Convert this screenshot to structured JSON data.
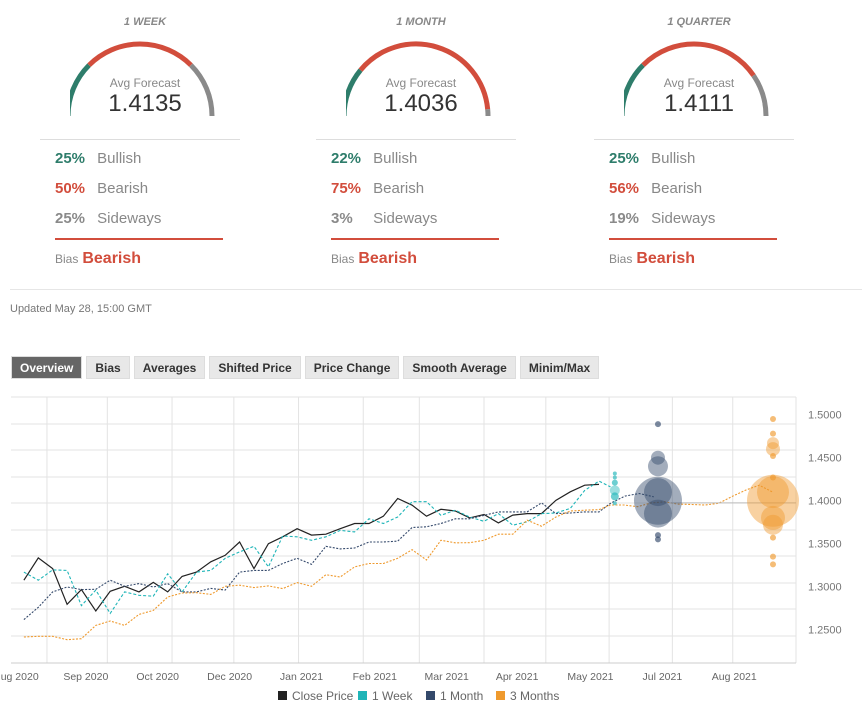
{
  "colors": {
    "bullish": "#2e7d6b",
    "bearish": "#d24d3c",
    "sideways": "#8a8a8a",
    "close": "#222",
    "week": "#1fb5b8",
    "month": "#34496b",
    "quarter": "#ef9a2e"
  },
  "cards": [
    {
      "title": "1 WEEK",
      "avg_label": "Avg Forecast",
      "avg": "1.4135",
      "bullish": "25%",
      "bearish": "50%",
      "sideways": "25%",
      "bull_label": "Bullish",
      "bear_label": "Bearish",
      "side_label": "Sideways",
      "bias_label": "Bias",
      "bias": "Bearish",
      "pct": [
        25,
        50,
        25
      ]
    },
    {
      "title": "1 MONTH",
      "avg_label": "Avg Forecast",
      "avg": "1.4036",
      "bullish": "22%",
      "bearish": "75%",
      "sideways": "3%",
      "bull_label": "Bullish",
      "bear_label": "Bearish",
      "side_label": "Sideways",
      "bias_label": "Bias",
      "bias": "Bearish",
      "pct": [
        22,
        75,
        3
      ]
    },
    {
      "title": "1 QUARTER",
      "avg_label": "Avg Forecast",
      "avg": "1.4111",
      "bullish": "25%",
      "bearish": "56%",
      "sideways": "19%",
      "bull_label": "Bullish",
      "bear_label": "Bearish",
      "side_label": "Sideways",
      "bias_label": "Bias",
      "bias": "Bearish",
      "pct": [
        25,
        56,
        19
      ]
    }
  ],
  "updated": "Updated May 28, 15:00 GMT",
  "tabs": [
    "Overview",
    "Bias",
    "Averages",
    "Shifted Price",
    "Price Change",
    "Smooth Average",
    "Minim/Max"
  ],
  "chart_data": {
    "type": "line",
    "x_unit": "weeks",
    "xlim": [
      -0.9,
      53.7
    ],
    "ylim": [
      1.2,
      1.52
    ],
    "y_ticks": [
      "1.5000",
      "1.4500",
      "1.4000",
      "1.3500",
      "1.3000",
      "1.2500"
    ],
    "y_tick_values": [
      1.5,
      1.45,
      1.4,
      1.35,
      1.3,
      1.25
    ],
    "x_ticks": [
      {
        "label": "ug 2020",
        "x": 0.4
      },
      {
        "label": "Sep 2020",
        "x": 5.0
      },
      {
        "label": "Oct 2020",
        "x": 10.0
      },
      {
        "label": "Dec 2020",
        "x": 15.0
      },
      {
        "label": "Jan 2021",
        "x": 20.0
      },
      {
        "label": "Feb 2021",
        "x": 25.1
      },
      {
        "label": "Mar 2021",
        "x": 30.1
      },
      {
        "label": "Apr 2021",
        "x": 35.0
      },
      {
        "label": "May 2021",
        "x": 40.1
      },
      {
        "label": "Jul 2021",
        "x": 45.1
      },
      {
        "label": "Aug 2021",
        "x": 50.1
      }
    ],
    "legend": [
      "Close Price",
      "1 Week",
      "1 Month",
      "3 Months"
    ],
    "legend_position": "bottom",
    "series": [
      {
        "name": "Close Price",
        "style": "solid",
        "values": [
          1.3075,
          1.3335,
          1.321,
          1.2795,
          1.2966,
          1.2717,
          1.2946,
          1.3005,
          1.294,
          1.305,
          1.294,
          1.312,
          1.317,
          1.329,
          1.3365,
          1.352,
          1.321,
          1.35,
          1.358,
          1.3675,
          1.36,
          1.361,
          1.3675,
          1.3735,
          1.3735,
          1.382,
          1.4025,
          1.3948,
          1.382,
          1.39,
          1.388,
          1.38,
          1.384,
          1.3742,
          1.3832,
          1.385,
          1.385,
          1.4005,
          1.4103,
          1.418,
          1.419
        ]
      },
      {
        "name": "1 Week",
        "style": "dashed",
        "values": [
          1.317,
          1.3075,
          1.3195,
          1.319,
          1.278,
          1.296,
          1.269,
          1.294,
          1.29,
          1.289,
          1.315,
          1.294,
          1.317,
          1.319,
          1.333,
          1.3405,
          1.347,
          1.323,
          1.359,
          1.358,
          1.354,
          1.358,
          1.3655,
          1.3637,
          1.379,
          1.3735,
          1.381,
          1.3988,
          1.3988,
          1.383,
          1.389,
          1.381,
          1.376,
          1.385,
          1.3715,
          1.3755,
          1.385,
          1.3857,
          1.391,
          1.412,
          1.4228,
          1.416
        ]
      },
      {
        "name": "1 Month",
        "style": "dotted",
        "values": [
          1.2617,
          1.276,
          1.294,
          1.2997,
          1.2966,
          1.297,
          1.3075,
          1.3005,
          1.3036,
          1.2997,
          1.3036,
          1.294,
          1.294,
          1.298,
          1.296,
          1.317,
          1.319,
          1.319,
          1.327,
          1.333,
          1.326,
          1.347,
          1.344,
          1.345,
          1.352,
          1.352,
          1.353,
          1.3688,
          1.3696,
          1.3735,
          1.379,
          1.379,
          1.383,
          1.387,
          1.387,
          1.387,
          1.3975,
          1.385,
          1.3857,
          1.387,
          1.387,
          1.397,
          1.4053,
          1.4084,
          1.4045
        ]
      },
      {
        "name": "3 Months",
        "style": "dotted",
        "values": [
          1.2415,
          1.2423,
          1.2423,
          1.2384,
          1.2395,
          1.255,
          1.2601,
          1.255,
          1.2678,
          1.2725,
          1.288,
          1.2927,
          1.293,
          1.291,
          1.3005,
          1.3017,
          1.299,
          1.3009,
          1.2978,
          1.3048,
          1.3005,
          1.314,
          1.3113,
          1.323,
          1.327,
          1.327,
          1.333,
          1.343,
          1.331,
          1.354,
          1.351,
          1.3512,
          1.354,
          1.361,
          1.361,
          1.3773,
          1.3703,
          1.381,
          1.388,
          1.389,
          1.3897,
          1.395,
          1.395,
          1.393,
          1.3975,
          1.3987,
          1.396,
          1.3956,
          1.395,
          1.397,
          1.405,
          1.4123,
          1.418,
          1.41
        ]
      }
    ],
    "forecasts": [
      {
        "name": "1 Week",
        "x": 41.1,
        "points": [
          {
            "y": 1.4317,
            "size": 2
          },
          {
            "y": 1.427,
            "size": 2
          },
          {
            "y": 1.421,
            "size": 3
          },
          {
            "y": 1.412,
            "size": 5
          },
          {
            "y": 1.405,
            "size": 4
          },
          {
            "y": 1.397,
            "size": 2
          }
        ]
      },
      {
        "name": "1 Month",
        "x": 44.1,
        "points": [
          {
            "y": 1.4,
            "size": 24
          },
          {
            "y": 1.41,
            "size": 14
          },
          {
            "y": 1.385,
            "size": 14
          },
          {
            "y": 1.44,
            "size": 10
          },
          {
            "y": 1.45,
            "size": 7
          },
          {
            "y": 1.489,
            "size": 3
          },
          {
            "y": 1.36,
            "size": 3
          },
          {
            "y": 1.355,
            "size": 3
          }
        ]
      },
      {
        "name": "3 Months",
        "x": 52.1,
        "points": [
          {
            "y": 1.4,
            "size": 26
          },
          {
            "y": 1.41,
            "size": 16
          },
          {
            "y": 1.38,
            "size": 12
          },
          {
            "y": 1.372,
            "size": 10
          },
          {
            "y": 1.46,
            "size": 7
          },
          {
            "y": 1.467,
            "size": 6
          },
          {
            "y": 1.495,
            "size": 3
          },
          {
            "y": 1.478,
            "size": 3
          },
          {
            "y": 1.452,
            "size": 3
          },
          {
            "y": 1.427,
            "size": 3
          },
          {
            "y": 1.357,
            "size": 3
          },
          {
            "y": 1.335,
            "size": 3
          },
          {
            "y": 1.326,
            "size": 3
          }
        ]
      }
    ]
  }
}
